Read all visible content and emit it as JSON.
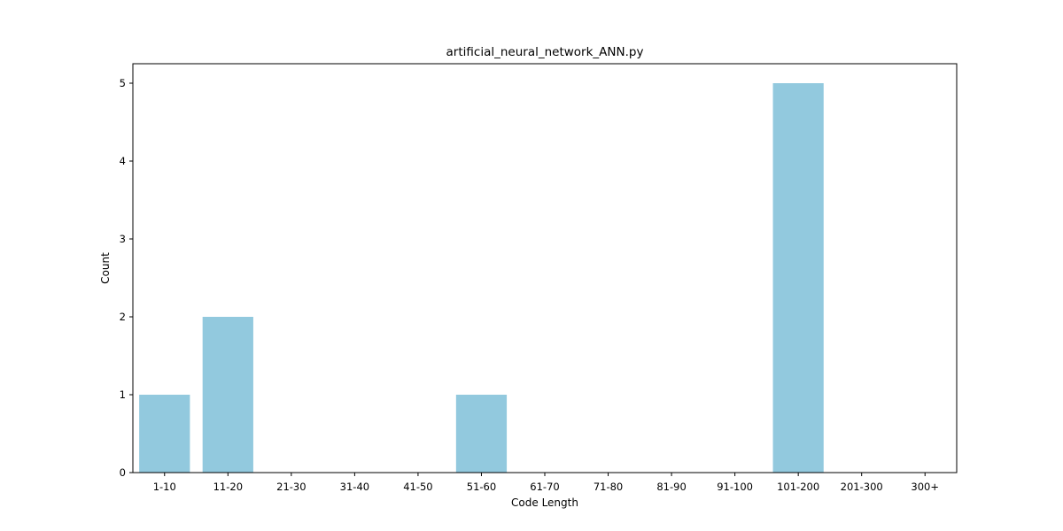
{
  "chart_data": {
    "type": "bar",
    "title": "artificial_neural_network_ANN.py",
    "xlabel": "Code Length",
    "ylabel": "Count",
    "categories": [
      "1-10",
      "11-20",
      "21-30",
      "31-40",
      "41-50",
      "51-60",
      "61-70",
      "71-80",
      "81-90",
      "91-100",
      "101-200",
      "201-300",
      "300+"
    ],
    "values": [
      1,
      2,
      0,
      0,
      0,
      1,
      0,
      0,
      0,
      0,
      5,
      0,
      0
    ],
    "yticks": [
      "0",
      "1",
      "2",
      "3",
      "4",
      "5"
    ],
    "ylim": [
      0,
      5.25
    ],
    "bar_color": "#92c9de",
    "grid": false,
    "legend": "none"
  }
}
